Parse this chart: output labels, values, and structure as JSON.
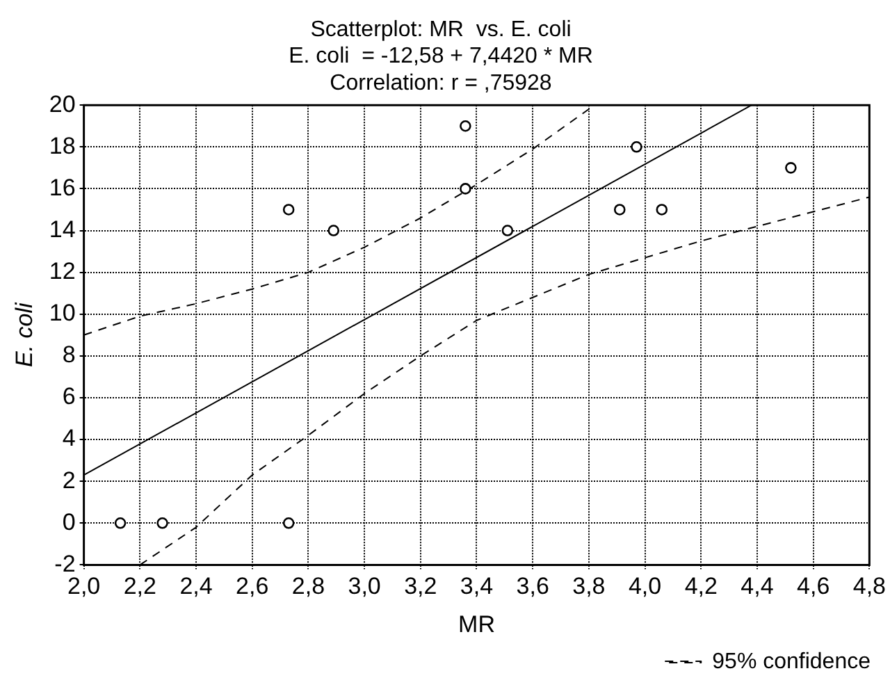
{
  "chart_data": {
    "type": "scatter",
    "title": "Scatterplot: MR  vs. E. coli",
    "subtitle": "E. coli  = -12,58 + 7,4420 * MR",
    "annotations": [
      "Correlation: r = ,75928"
    ],
    "xlabel": "MR",
    "ylabel": "E. coli",
    "xlim": [
      2.0,
      4.8
    ],
    "ylim": [
      -2,
      20
    ],
    "xticks": [
      {
        "value": 2.0,
        "label": "2,0"
      },
      {
        "value": 2.2,
        "label": "2,2"
      },
      {
        "value": 2.4,
        "label": "2,4"
      },
      {
        "value": 2.6,
        "label": "2,6"
      },
      {
        "value": 2.8,
        "label": "2,8"
      },
      {
        "value": 3.0,
        "label": "3,0"
      },
      {
        "value": 3.2,
        "label": "3,2"
      },
      {
        "value": 3.4,
        "label": "3,4"
      },
      {
        "value": 3.6,
        "label": "3,6"
      },
      {
        "value": 3.8,
        "label": "3,8"
      },
      {
        "value": 4.0,
        "label": "4,0"
      },
      {
        "value": 4.2,
        "label": "4,2"
      },
      {
        "value": 4.4,
        "label": "4,4"
      },
      {
        "value": 4.6,
        "label": "4,6"
      },
      {
        "value": 4.8,
        "label": "4,8"
      }
    ],
    "yticks": [
      -2,
      0,
      2,
      4,
      6,
      8,
      10,
      12,
      14,
      16,
      18,
      20
    ],
    "grid": true,
    "legend": "bottom right",
    "series": [
      {
        "type": "scatter",
        "color": "#000000",
        "marker": "circle",
        "x": [
          2.13,
          2.28,
          2.73,
          2.73,
          2.89,
          3.36,
          3.36,
          3.51,
          3.91,
          3.97,
          4.06,
          4.52
        ],
        "values": [
          0,
          0,
          0,
          15,
          14,
          19,
          16,
          14,
          15,
          18,
          15,
          17
        ]
      },
      {
        "type": "line",
        "color": "#000000",
        "marker": "none",
        "line_style": "solid",
        "x": [
          2.0,
          4.38
        ],
        "values": [
          2.3,
          20
        ]
      },
      {
        "type": "line",
        "name": "95% confidence",
        "color": "#000000",
        "marker": "none",
        "line_style": "dashed",
        "x": [
          2.0,
          2.2,
          2.4,
          2.6,
          2.8,
          3.0,
          3.2,
          3.4,
          3.6,
          3.82
        ],
        "values": [
          9.0,
          9.9,
          10.5,
          11.2,
          12.0,
          13.2,
          14.6,
          16.2,
          17.9,
          20
        ]
      },
      {
        "type": "line",
        "color": "#000000",
        "marker": "none",
        "line_style": "dashed",
        "x": [
          2.2,
          2.4,
          2.6,
          2.8,
          3.0,
          3.2,
          3.4,
          3.6,
          3.8,
          4.0,
          4.2,
          4.4,
          4.6,
          4.8
        ],
        "values": [
          -2,
          -0.2,
          2.3,
          4.2,
          6.2,
          8.0,
          9.7,
          10.8,
          11.9,
          12.7,
          13.5,
          14.2,
          14.9,
          15.6
        ]
      }
    ]
  }
}
